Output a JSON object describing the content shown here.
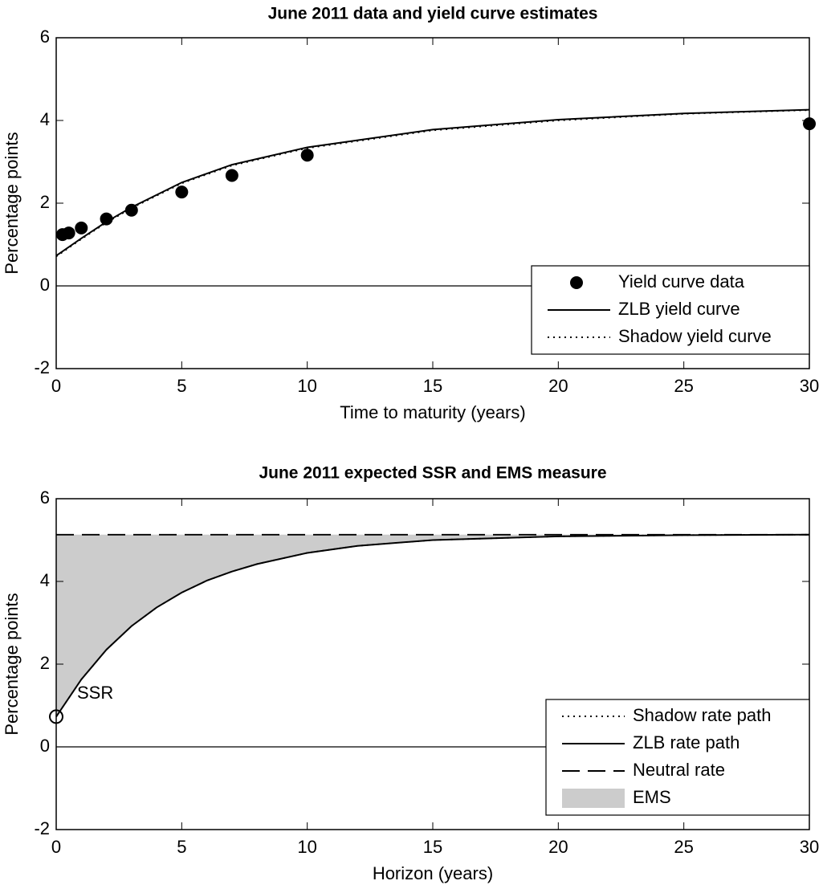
{
  "chart_data": [
    {
      "type": "line",
      "title": "June 2011 data and yield curve estimates",
      "xlabel": "Time to maturity (years)",
      "ylabel": "Percentage points",
      "xlim": [
        0,
        30
      ],
      "ylim": [
        -2,
        6
      ],
      "xticks": [
        0,
        5,
        10,
        15,
        20,
        25,
        30
      ],
      "yticks": [
        -2,
        0,
        2,
        4,
        6
      ],
      "legend": "lower right",
      "series": [
        {
          "name": "Yield curve data",
          "color": "#000000",
          "style": "markers",
          "x": [
            0.25,
            0.5,
            1,
            2,
            3,
            5,
            7,
            10,
            30
          ],
          "values": [
            1.24,
            1.28,
            1.4,
            1.62,
            1.83,
            2.27,
            2.67,
            3.16,
            3.92
          ]
        },
        {
          "name": "ZLB yield curve",
          "color": "#000000",
          "style": "solid",
          "x": [
            0,
            1,
            2,
            3,
            5,
            7,
            10,
            15,
            20,
            25,
            30
          ],
          "values": [
            0.73,
            1.15,
            1.55,
            1.9,
            2.5,
            2.93,
            3.35,
            3.78,
            4.02,
            4.17,
            4.26
          ]
        },
        {
          "name": "Shadow yield curve",
          "color": "#000000",
          "style": "dotted",
          "x": [
            0,
            1,
            2,
            3,
            5,
            7,
            10,
            15,
            20,
            25,
            30
          ],
          "values": [
            0.71,
            1.13,
            1.53,
            1.88,
            2.48,
            2.91,
            3.33,
            3.76,
            4.0,
            4.16,
            4.25
          ]
        }
      ]
    },
    {
      "type": "line",
      "title": "June 2011 expected SSR and EMS measure",
      "xlabel": "Horizon (years)",
      "ylabel": "Percentage points",
      "xlim": [
        0,
        30
      ],
      "ylim": [
        -2,
        6
      ],
      "xticks": [
        0,
        5,
        10,
        15,
        20,
        25,
        30
      ],
      "yticks": [
        -2,
        0,
        2,
        4,
        6
      ],
      "legend": "lower right",
      "annotation": "SSR",
      "series": [
        {
          "name": "Shadow rate path",
          "color": "#000000",
          "style": "dotted",
          "x": [
            0,
            1,
            2,
            3,
            4,
            5,
            6,
            7,
            8,
            10,
            12,
            15,
            20,
            25,
            30
          ],
          "values": [
            0.73,
            1.63,
            2.35,
            2.92,
            3.37,
            3.73,
            4.02,
            4.24,
            4.42,
            4.69,
            4.86,
            5.0,
            5.09,
            5.12,
            5.13
          ]
        },
        {
          "name": "ZLB rate path",
          "color": "#000000",
          "style": "solid",
          "x": [
            0,
            1,
            2,
            3,
            4,
            5,
            6,
            7,
            8,
            10,
            12,
            15,
            20,
            25,
            30
          ],
          "values": [
            0.73,
            1.63,
            2.35,
            2.92,
            3.37,
            3.73,
            4.02,
            4.24,
            4.42,
            4.69,
            4.86,
            5.0,
            5.09,
            5.12,
            5.13
          ]
        },
        {
          "name": "Neutral rate",
          "color": "#000000",
          "style": "dashed",
          "x": [
            0,
            30
          ],
          "values": [
            5.13,
            5.13
          ]
        },
        {
          "name": "EMS",
          "color": "#cccccc",
          "style": "fill"
        }
      ]
    }
  ]
}
